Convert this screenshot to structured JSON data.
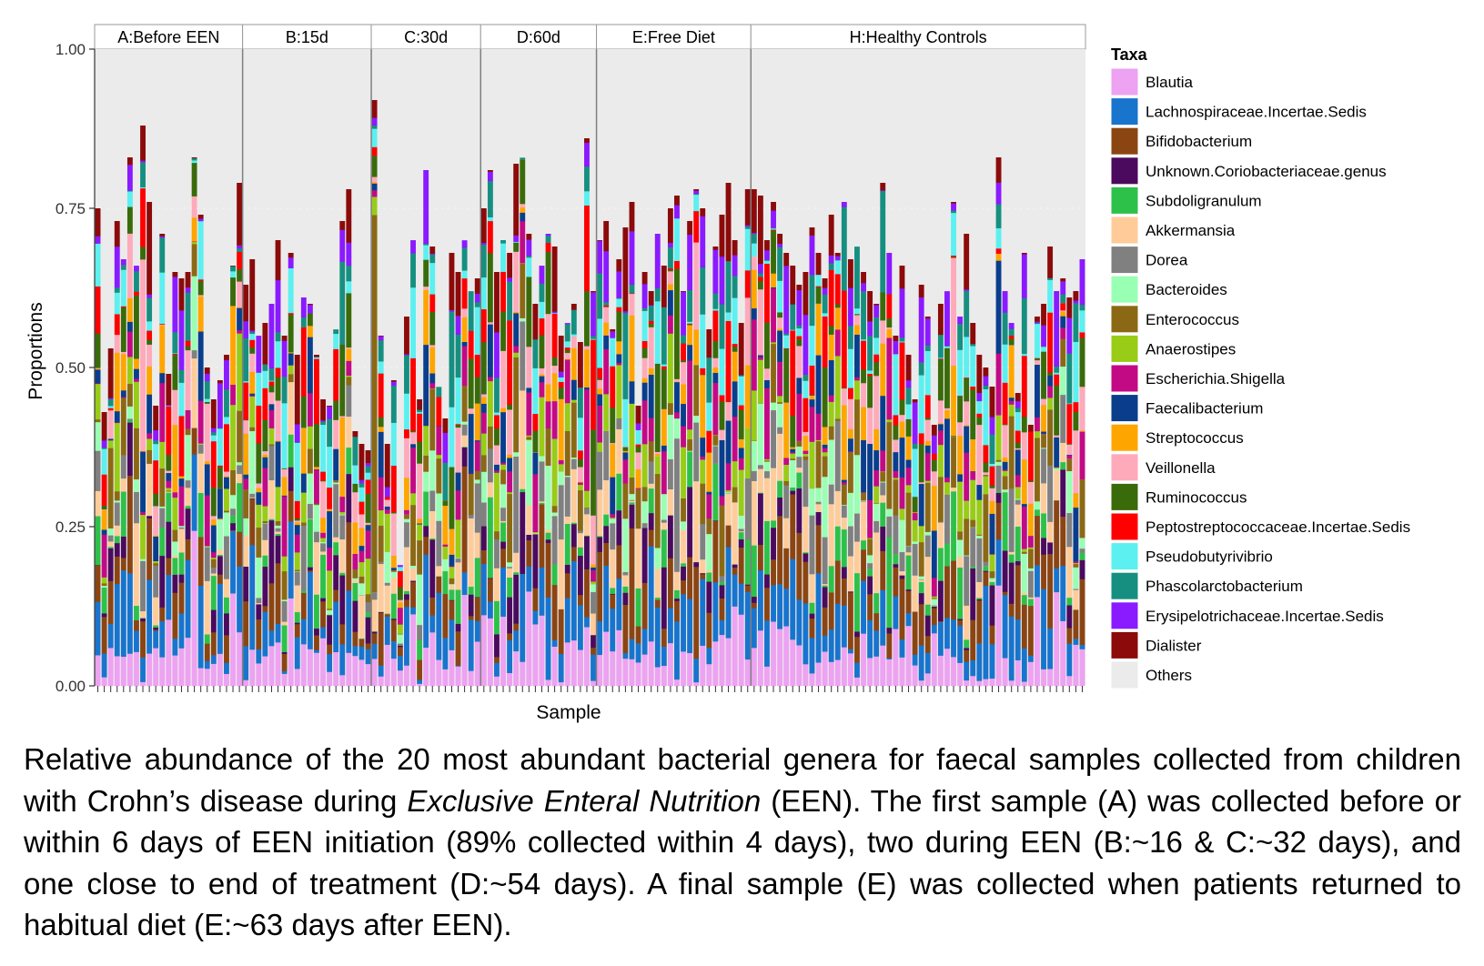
{
  "chart_data": {
    "type": "bar",
    "stacked": true,
    "xlabel": "Sample",
    "ylabel": "Proportions",
    "ylim": [
      0,
      1
    ],
    "yticks": [
      "0.00",
      "0.25",
      "0.50",
      "0.75",
      "1.00"
    ],
    "grid": true,
    "legend_title": "Taxa",
    "legend_position": "right",
    "panels": [
      {
        "label": "A:Before EEN",
        "samples": 23
      },
      {
        "label": "B:15d",
        "samples": 20
      },
      {
        "label": "C:30d",
        "samples": 17
      },
      {
        "label": "D:60d",
        "samples": 18
      },
      {
        "label": "E:Free Diet",
        "samples": 24
      },
      {
        "label": "H:Healthy Controls",
        "samples": 52
      }
    ],
    "taxa": [
      {
        "name": "Blautia",
        "color": "#EDA2F2"
      },
      {
        "name": "Lachnospiraceae.Incertae.Sedis",
        "color": "#1874CD"
      },
      {
        "name": "Bifidobacterium",
        "color": "#8B4513"
      },
      {
        "name": "Unknown.Coriobacteriaceae.genus",
        "color": "#4B0A5E"
      },
      {
        "name": "Subdoligranulum",
        "color": "#2EC14A"
      },
      {
        "name": "Akkermansia",
        "color": "#FFCC99"
      },
      {
        "name": "Dorea",
        "color": "#808080"
      },
      {
        "name": "Bacteroides",
        "color": "#99FFB3"
      },
      {
        "name": "Enterococcus",
        "color": "#8B6914"
      },
      {
        "name": "Anaerostipes",
        "color": "#99CC16"
      },
      {
        "name": "Escherichia.Shigella",
        "color": "#C30A85"
      },
      {
        "name": "Faecalibacterium",
        "color": "#0A3D8C"
      },
      {
        "name": "Streptococcus",
        "color": "#FFA500"
      },
      {
        "name": "Veillonella",
        "color": "#FFAABB"
      },
      {
        "name": "Ruminococcus",
        "color": "#3A6B0A"
      },
      {
        "name": "Peptostreptococcaceae.Incertae.Sedis",
        "color": "#FF0000"
      },
      {
        "name": "Pseudobutyrivibrio",
        "color": "#5CF0F0"
      },
      {
        "name": "Phascolarctobacterium",
        "color": "#168F80"
      },
      {
        "name": "Erysipelotrichaceae.Incertae.Sedis",
        "color": "#8A1AFF"
      },
      {
        "name": "Dialister",
        "color": "#8C0A0A"
      },
      {
        "name": "Others",
        "color": "#EBEBEB"
      }
    ],
    "totals": {
      "A:Before EEN": [
        0.75,
        0.43,
        0.53,
        0.73,
        0.67,
        0.83,
        0.66,
        0.88,
        0.76,
        0.44,
        0.71,
        0.49,
        0.65,
        0.64,
        0.65,
        0.83,
        0.74,
        0.5,
        0.45,
        0.48,
        0.52,
        0.66,
        0.79
      ],
      "B:15d": [
        0.63,
        0.67,
        0.55,
        0.57,
        0.6,
        0.7,
        0.55,
        0.68,
        0.52,
        0.61,
        0.6,
        0.52,
        0.45,
        0.44,
        0.56,
        0.73,
        0.78,
        0.4,
        0.38,
        0.37
      ],
      "C:30d": [
        0.92,
        0.55,
        0.38,
        0.48,
        0.19,
        0.58,
        0.7,
        0.45,
        0.81,
        0.69,
        0.47,
        0.42,
        0.68,
        0.65,
        0.7,
        0.62,
        0.64
      ],
      "D:60d": [
        0.75,
        0.81,
        0.65,
        0.7,
        0.68,
        0.82,
        0.83,
        0.71,
        0.6,
        0.66,
        0.71,
        0.69,
        0.55,
        0.57,
        0.6,
        0.54,
        0.86,
        0.62
      ],
      "E:Free Diet": [
        0.7,
        0.73,
        0.56,
        0.67,
        0.72,
        0.76,
        0.44,
        0.65,
        0.62,
        0.71,
        0.66,
        0.75,
        0.77,
        0.62,
        0.73,
        0.78,
        0.75,
        0.56,
        0.69,
        0.74,
        0.79,
        0.7,
        0.57,
        0.78
      ],
      "H:Healthy Controls": [
        0.78,
        0.77,
        0.7,
        0.76,
        0.71,
        0.68,
        0.66,
        0.63,
        0.65,
        0.72,
        0.68,
        0.64,
        0.74,
        0.68,
        0.76,
        0.67,
        0.69,
        0.65,
        0.62,
        0.6,
        0.79,
        0.68,
        0.55,
        0.66,
        0.52,
        0.45,
        0.63,
        0.58,
        0.41,
        0.6,
        0.62,
        0.76,
        0.58,
        0.71,
        0.57,
        0.52,
        0.5,
        0.47,
        0.83,
        0.62,
        0.57,
        0.46,
        0.68,
        0.41,
        0.58,
        0.6,
        0.69,
        0.62,
        0.64,
        0.61,
        0.62,
        0.67
      ]
    }
  },
  "caption": {
    "part1": "Relative abundance of the 20 most abundant bacterial genera for faecal samples collected from children with Crohn’s disease during ",
    "italic": "Exclusive Enteral Nutrition",
    "part2": " (EEN). The first sample (A) was collected before or within 6 days of EEN initiation (89% collected within 4 days), two during EEN (B:~16 & C:~32 days), and one close to end of treatment (D:~54 days). A final sample (E) was collected when patients returned to habitual diet (E:~63 days after EEN)."
  }
}
